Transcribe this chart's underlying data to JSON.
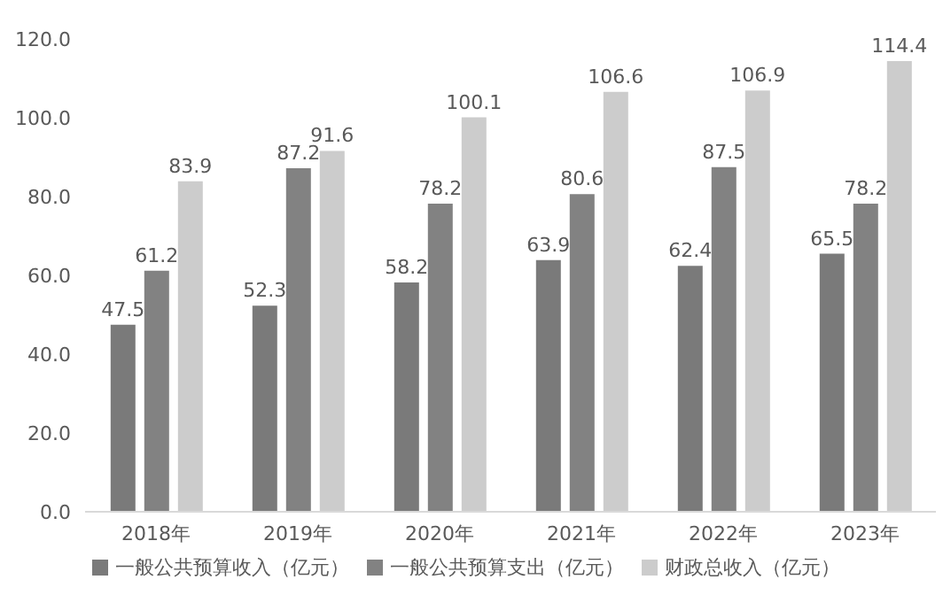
{
  "chart_data": {
    "type": "bar",
    "categories": [
      "2018年",
      "2019年",
      "2020年",
      "2021年",
      "2022年",
      "2023年"
    ],
    "series": [
      {
        "name": "一般公共预算收入（亿元）",
        "color": "#7a7a7a",
        "values": [
          47.5,
          52.3,
          58.2,
          63.9,
          62.4,
          65.5
        ]
      },
      {
        "name": "一般公共预算支出（亿元）",
        "color": "#828282",
        "values": [
          61.2,
          87.2,
          78.2,
          80.6,
          87.5,
          78.2
        ]
      },
      {
        "name": "财政总收入（亿元）",
        "color": "#cccccc",
        "values": [
          83.9,
          91.6,
          100.1,
          106.6,
          106.9,
          114.4
        ]
      }
    ],
    "ylim": [
      0,
      120
    ],
    "yticks": [
      {
        "value": 0,
        "label": "0.0"
      },
      {
        "value": 20,
        "label": "20.0"
      },
      {
        "value": 40,
        "label": "40.0"
      },
      {
        "value": 60,
        "label": "60.0"
      },
      {
        "value": 80,
        "label": "80.0"
      },
      {
        "value": 100,
        "label": "100.0"
      },
      {
        "value": 120,
        "label": "120.0"
      }
    ],
    "data_labels": true,
    "grid": false,
    "legend": "bottom"
  }
}
